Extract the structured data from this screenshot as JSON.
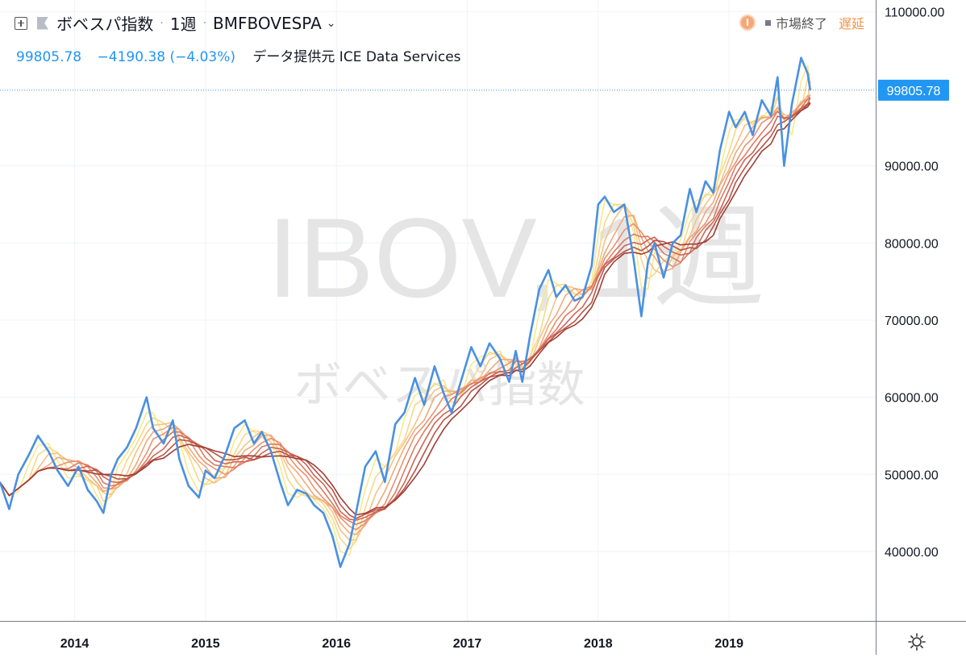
{
  "header": {
    "symbol_name": "ボベスパ指数",
    "interval": "1週",
    "exchange_symbol": "BMFBOVESPA",
    "last_value": "99805.78",
    "change": "−4190.38 (−4.03%)",
    "data_source": "データ提供元 ICE Data Services"
  },
  "status": {
    "market_status": "市場終了",
    "delay": "遅延"
  },
  "watermark": {
    "main": "IBOV, 1週",
    "sub": "ボベスパ指数"
  },
  "colors": {
    "price_line": "#4a90e2",
    "ribbon": [
      "#f7e98f",
      "#f8d888",
      "#f5c383",
      "#efaa79",
      "#e8936f",
      "#dc7b63",
      "#cd6556",
      "#b85347",
      "#9e3f34"
    ],
    "axis_text": "#131722",
    "grid": "#f0f3fa"
  },
  "chart_data": {
    "type": "line",
    "x_unit": "year",
    "ylim": [
      31000,
      111500
    ],
    "xlim": [
      2013.43,
      2020.12
    ],
    "y_ticks": [
      40000,
      50000,
      60000,
      70000,
      80000,
      90000,
      100000,
      110000
    ],
    "y_tick_labels": [
      "40000.00",
      "50000.00",
      "60000.00",
      "70000.00",
      "80000.00",
      "90000.00",
      "100000.00",
      "110000.00"
    ],
    "x_ticks": [
      2014,
      2015,
      2016,
      2017,
      2018,
      2019
    ],
    "x_tick_labels": [
      "2014",
      "2015",
      "2016",
      "2017",
      "2018",
      "2019"
    ],
    "last_price_label": "99805.78",
    "grid": true,
    "series": [
      {
        "role": "price",
        "x": [
          2013.43,
          2013.5,
          2013.57,
          2013.65,
          2013.72,
          2013.8,
          2013.87,
          2013.95,
          2014.03,
          2014.1,
          2014.17,
          2014.22,
          2014.28,
          2014.33,
          2014.4,
          2014.47,
          2014.55,
          2014.6,
          2014.68,
          2014.75,
          2014.8,
          2014.87,
          2014.95,
          2015.0,
          2015.07,
          2015.15,
          2015.22,
          2015.3,
          2015.37,
          2015.43,
          2015.5,
          2015.57,
          2015.63,
          2015.7,
          2015.77,
          2015.83,
          2015.9,
          2015.97,
          2016.03,
          2016.1,
          2016.15,
          2016.22,
          2016.3,
          2016.37,
          2016.45,
          2016.52,
          2016.6,
          2016.67,
          2016.75,
          2016.82,
          2016.88,
          2016.95,
          2017.03,
          2017.1,
          2017.17,
          2017.25,
          2017.32,
          2017.37,
          2017.42,
          2017.48,
          2017.55,
          2017.62,
          2017.68,
          2017.75,
          2017.82,
          2017.88,
          2017.95,
          2018.0,
          2018.05,
          2018.12,
          2018.2,
          2018.27,
          2018.33,
          2018.38,
          2018.43,
          2018.5,
          2018.57,
          2018.63,
          2018.7,
          2018.75,
          2018.82,
          2018.88,
          2018.93,
          2019.0,
          2019.05,
          2019.12,
          2019.18,
          2019.25,
          2019.32,
          2019.37,
          2019.42,
          2019.48,
          2019.55,
          2019.6,
          2019.62
        ],
        "y": [
          49000,
          45500,
          50000,
          52500,
          55000,
          53000,
          50500,
          48500,
          51000,
          48000,
          46500,
          45000,
          50000,
          52000,
          53500,
          56000,
          60000,
          56000,
          54000,
          57000,
          52000,
          48500,
          47000,
          50500,
          49500,
          52500,
          56000,
          57000,
          54000,
          55500,
          53000,
          49000,
          46000,
          48000,
          47500,
          46000,
          45000,
          42000,
          38000,
          41000,
          45000,
          51000,
          53000,
          49000,
          56500,
          58000,
          62500,
          59000,
          64000,
          60500,
          58000,
          62000,
          66500,
          64000,
          67000,
          65000,
          62000,
          66000,
          62000,
          68000,
          74000,
          76500,
          73000,
          74500,
          72500,
          73000,
          77000,
          85000,
          86000,
          84000,
          85000,
          78000,
          70500,
          77500,
          80000,
          75500,
          80000,
          81000,
          87000,
          84000,
          88000,
          86500,
          92000,
          97000,
          95000,
          97000,
          94000,
          98500,
          96500,
          101500,
          90000,
          98000,
          104000,
          102000,
          99805.78
        ]
      }
    ]
  }
}
